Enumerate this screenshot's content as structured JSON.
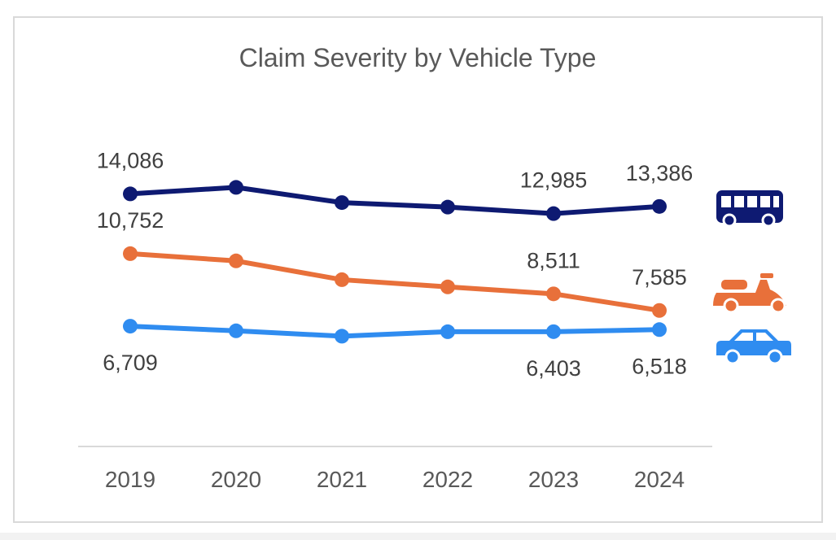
{
  "chart_data": {
    "type": "line",
    "title": "Claim Severity by Vehicle Type",
    "xlabel": "",
    "ylabel": "",
    "categories": [
      "2019",
      "2020",
      "2021",
      "2022",
      "2023",
      "2024"
    ],
    "ylim": [
      0,
      20000
    ],
    "grid": false,
    "legend": "icons at right end of each line",
    "series": [
      {
        "icon": "bus-icon",
        "color": "#0e1a72",
        "values": [
          14086,
          14450,
          13600,
          13350,
          12985,
          13386
        ],
        "labels": [
          "14,086",
          "",
          "",
          "",
          "12,985",
          "13,386"
        ],
        "label_position": "above"
      },
      {
        "icon": "scooter-icon",
        "color": "#e8703a",
        "values": [
          10752,
          10350,
          9300,
          8900,
          8511,
          7585
        ],
        "labels": [
          "10,752",
          "",
          "",
          "",
          "8,511",
          "7,585"
        ],
        "label_position": "above"
      },
      {
        "icon": "car-icon",
        "color": "#2f8cf0",
        "values": [
          6709,
          6450,
          6150,
          6400,
          6403,
          6518
        ],
        "labels": [
          "6,709",
          "",
          "",
          "",
          "6,403",
          "6,518"
        ],
        "label_position": "below"
      }
    ]
  }
}
